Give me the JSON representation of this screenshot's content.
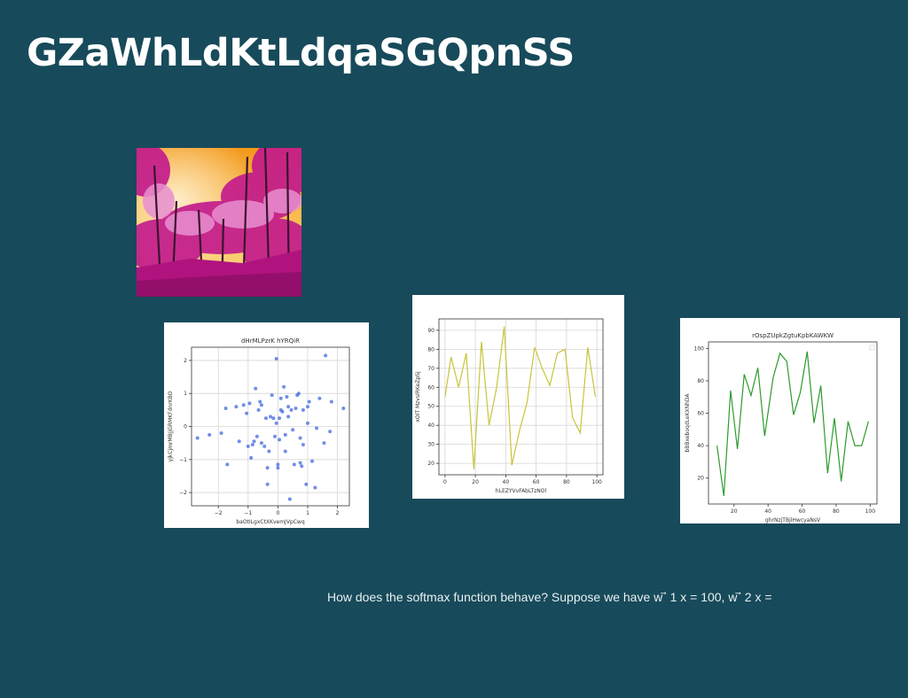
{
  "slide": {
    "title": "GZaWhLdKtLdqaSGQpnSS",
    "caption": "How does the softmax function behave? Suppose we have w ⃗ 1 x = 100, w ⃗ 2 x ="
  },
  "photo": {
    "description_icon": "pink-forest-photo",
    "colors": {
      "sky_top": "#f7a32a",
      "sky_bottom": "#fbd07a",
      "foliage": "#c2188d",
      "foliage_light": "#e88fd0",
      "trunks": "#3a1430"
    }
  },
  "chart_data": [
    {
      "type": "scatter",
      "title": "dHrMLPzrK hYRQiR",
      "xlabel": "baOtILgxCtXKvemJVpCwq",
      "ylabel": "yjkCjmrMBJjGRMKFdnrKBO",
      "xlim": [
        -2.9,
        2.4
      ],
      "ylim": [
        -2.4,
        2.4
      ],
      "xticks": [
        -2,
        -1,
        0,
        1,
        2
      ],
      "yticks": [
        -2,
        -1,
        0,
        1,
        2
      ],
      "grid": true,
      "color": "#4c72e0",
      "points": [
        [
          -2.7,
          -0.35
        ],
        [
          -2.3,
          -0.25
        ],
        [
          -1.9,
          -0.2
        ],
        [
          -1.75,
          0.55
        ],
        [
          -1.7,
          -1.15
        ],
        [
          -1.4,
          0.6
        ],
        [
          -1.3,
          -0.45
        ],
        [
          -1.15,
          0.65
        ],
        [
          -1.05,
          0.4
        ],
        [
          -0.95,
          0.7
        ],
        [
          -0.9,
          -0.95
        ],
        [
          -0.85,
          -0.55
        ],
        [
          -0.8,
          -0.45
        ],
        [
          -0.75,
          1.15
        ],
        [
          -0.7,
          -0.3
        ],
        [
          -0.65,
          0.5
        ],
        [
          -0.6,
          0.75
        ],
        [
          -0.55,
          0.65
        ],
        [
          -0.45,
          -0.6
        ],
        [
          -0.4,
          0.25
        ],
        [
          -0.35,
          -1.25
        ],
        [
          -0.35,
          -1.75
        ],
        [
          -0.3,
          -0.75
        ],
        [
          -0.25,
          0.3
        ],
        [
          -0.2,
          0.95
        ],
        [
          -0.15,
          0.25
        ],
        [
          -0.1,
          -0.3
        ],
        [
          -0.05,
          0.1
        ],
        [
          -0.05,
          2.05
        ],
        [
          0.0,
          -1.15
        ],
        [
          0.0,
          -1.25
        ],
        [
          0.05,
          -0.4
        ],
        [
          0.1,
          0.85
        ],
        [
          0.1,
          0.5
        ],
        [
          0.15,
          0.45
        ],
        [
          0.2,
          1.2
        ],
        [
          0.25,
          -0.25
        ],
        [
          0.25,
          -0.75
        ],
        [
          0.3,
          0.9
        ],
        [
          0.35,
          0.6
        ],
        [
          0.35,
          0.3
        ],
        [
          0.4,
          -2.2
        ],
        [
          0.45,
          0.5
        ],
        [
          0.5,
          -0.1
        ],
        [
          0.55,
          -1.15
        ],
        [
          0.65,
          0.95
        ],
        [
          0.7,
          1.0
        ],
        [
          0.75,
          -0.35
        ],
        [
          0.75,
          -1.1
        ],
        [
          0.8,
          -1.2
        ],
        [
          0.85,
          -0.55
        ],
        [
          0.85,
          0.5
        ],
        [
          0.95,
          -1.75
        ],
        [
          1.0,
          0.6
        ],
        [
          1.0,
          0.1
        ],
        [
          1.05,
          0.75
        ],
        [
          1.15,
          -1.05
        ],
        [
          1.25,
          -1.85
        ],
        [
          1.3,
          -0.05
        ],
        [
          1.4,
          0.85
        ],
        [
          1.55,
          -0.5
        ],
        [
          1.6,
          2.15
        ],
        [
          1.75,
          -0.15
        ],
        [
          1.8,
          0.75
        ],
        [
          2.2,
          0.55
        ],
        [
          -0.55,
          -0.5
        ],
        [
          0.05,
          0.25
        ],
        [
          0.6,
          0.55
        ],
        [
          -1.0,
          -0.6
        ]
      ]
    },
    {
      "type": "line",
      "title": "",
      "xlabel": "hLEZYVvFAbLTzNOl",
      "ylabel": "xOIT MzvsIRKeZpSj",
      "xlim": [
        -4,
        104
      ],
      "ylim": [
        14,
        96
      ],
      "xticks": [
        0,
        20,
        40,
        60,
        80,
        100
      ],
      "yticks": [
        20,
        30,
        40,
        50,
        60,
        70,
        80,
        90
      ],
      "grid": true,
      "color": "#c9c43a",
      "x": [
        0,
        4,
        9,
        14,
        19,
        24,
        29,
        34,
        39,
        44,
        49,
        54,
        59,
        64,
        69,
        74,
        79,
        84,
        89,
        94,
        99
      ],
      "y": [
        55,
        76,
        60,
        78,
        17,
        84,
        40,
        60,
        92,
        19,
        37,
        52,
        81,
        70,
        61,
        78,
        80,
        44,
        36,
        81,
        55
      ]
    },
    {
      "type": "line",
      "title": "rOspZUpkZgtuKpbKAWKW",
      "xlabel": "ghrNzjTBjlHwcyaNsV",
      "ylabel": "bBBxeboqdLeKXNhDA",
      "xlim": [
        5,
        104
      ],
      "ylim": [
        4,
        104
      ],
      "xticks": [
        20,
        40,
        60,
        80,
        100
      ],
      "yticks": [
        20,
        40,
        60,
        80,
        100
      ],
      "grid": false,
      "color": "#2e9a2e",
      "x": [
        10,
        14,
        18,
        22,
        26,
        30,
        34,
        38,
        43,
        47,
        51,
        55,
        59,
        63,
        67,
        71,
        75,
        79,
        83,
        87,
        91,
        95,
        99
      ],
      "y": [
        40,
        9,
        74,
        38,
        84,
        71,
        88,
        46,
        82,
        97,
        92,
        59,
        73,
        98,
        54,
        77,
        23,
        57,
        18,
        55,
        40,
        40,
        55
      ]
    }
  ]
}
